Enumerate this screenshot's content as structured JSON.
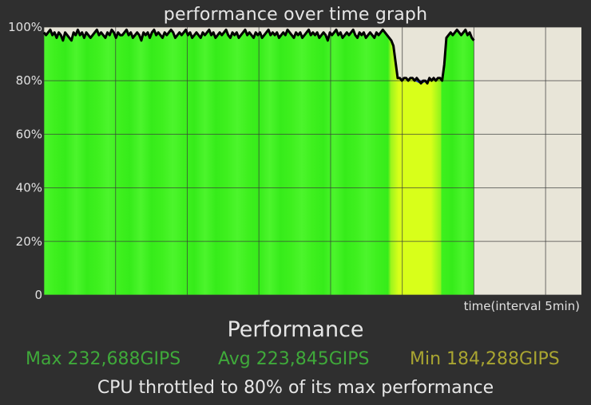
{
  "chart_data": {
    "type": "area",
    "title": "performance over time graph",
    "xlabel": "time(interval 5min)",
    "ylabel": "",
    "ylim": [
      0,
      100
    ],
    "yticks": [
      "0",
      "20%",
      "40%",
      "60%",
      "80%",
      "100%"
    ],
    "x_intervals": 7.5,
    "x_elapsed": 6,
    "grid": true,
    "colors": {
      "background": "#2f2f2f",
      "plot_background": "#e8e5d8",
      "normal_fill": "#3ef01e",
      "throttled_fill": "#d8ff1a",
      "line": "#000000",
      "throttle_dip": "#2b3fd6",
      "grid": "#3a3a3a"
    },
    "series": [
      {
        "values": [
          98,
          97,
          98,
          99,
          97,
          98,
          96,
          98,
          97,
          95,
          98,
          97,
          96,
          95,
          98,
          97,
          99,
          97,
          98,
          96,
          98,
          97,
          96,
          97,
          98,
          99,
          97,
          98,
          97,
          96,
          98,
          97,
          99,
          98,
          96,
          98,
          97,
          97,
          98,
          99,
          97,
          98,
          96,
          97,
          98,
          97,
          95,
          98,
          97,
          98,
          96,
          98,
          99,
          97,
          98,
          97,
          96,
          98,
          97,
          98,
          99,
          98,
          96,
          97,
          98,
          97,
          98,
          99,
          97,
          98,
          96,
          97,
          98,
          97,
          96,
          98,
          97,
          98,
          99,
          97,
          98,
          96,
          97,
          98,
          97,
          98,
          99,
          97,
          96,
          98,
          97,
          98,
          96,
          97,
          98,
          99,
          97,
          98,
          97,
          96,
          98,
          97,
          98,
          96,
          97,
          98,
          99,
          97,
          98,
          97,
          98,
          96,
          97,
          98,
          97,
          99,
          98,
          97,
          96,
          98,
          97,
          98,
          96,
          97,
          98,
          99,
          97,
          98,
          97,
          98,
          96,
          97,
          98,
          97,
          95,
          98,
          97,
          98,
          99,
          97,
          98,
          96,
          97,
          98,
          97,
          98,
          99,
          97,
          96,
          98,
          97,
          98,
          96,
          97,
          98,
          97,
          96,
          98,
          97,
          98,
          99,
          98,
          97,
          96,
          95,
          93,
          87,
          81,
          81,
          80,
          81,
          81,
          80,
          81,
          81,
          80,
          81,
          80,
          79,
          80,
          80,
          79,
          81,
          80,
          81,
          80,
          81,
          81,
          80,
          86,
          96,
          97,
          98,
          97,
          98,
          99,
          98,
          97,
          98,
          99,
          97,
          98,
          96,
          95
        ]
      }
    ],
    "throttled_range": [
      0.81,
      0.92
    ]
  },
  "performance": {
    "title": "Performance",
    "max": "Max 232,688GIPS",
    "avg": "Avg 223,845GIPS",
    "min": "Min 184,288GIPS",
    "note": "CPU throttled to 80% of its max performance"
  }
}
